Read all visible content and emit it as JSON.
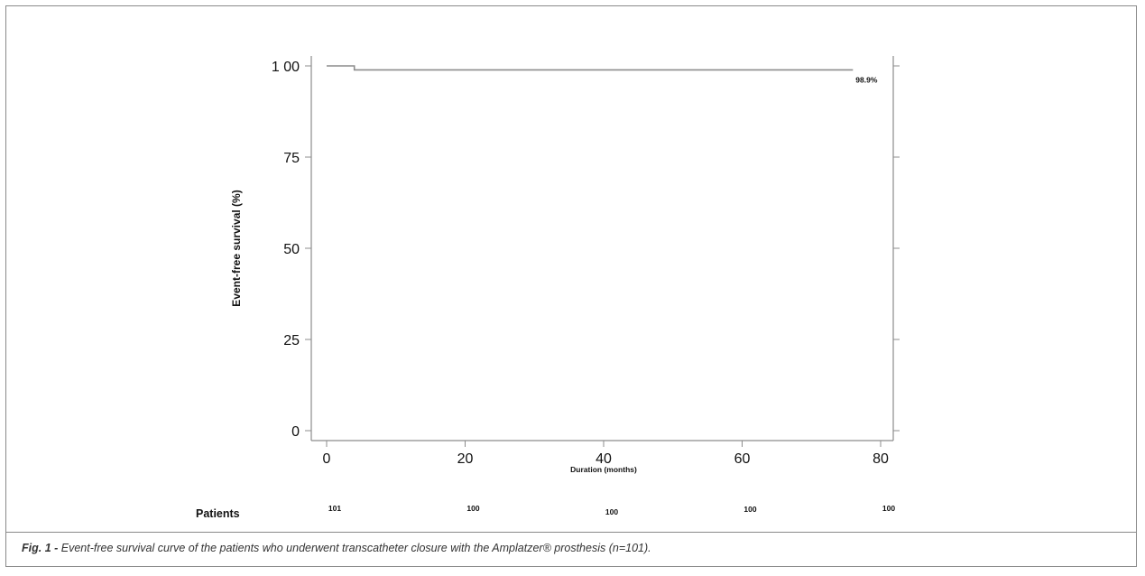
{
  "chart_data": {
    "type": "line",
    "xlabel": "Duration (months)",
    "ylabel": "Event-free survival (%)",
    "xlim": [
      0,
      80
    ],
    "ylim": [
      0,
      100
    ],
    "x_ticks": [
      "0",
      "20",
      "40",
      "60",
      "80"
    ],
    "y_ticks": [
      "0",
      "25",
      "50",
      "75",
      "1 00"
    ],
    "series": [
      {
        "x": [
          0,
          4,
          4,
          76
        ],
        "y": [
          100,
          100,
          98.9,
          98.9
        ],
        "step": true
      }
    ],
    "end_label": "98.9%",
    "risk_table": {
      "label": "Patients",
      "x": [
        0,
        20,
        40,
        60,
        80
      ],
      "values": [
        "101",
        "100",
        "100",
        "100",
        "100"
      ]
    },
    "grid": false,
    "line_color": "#8c8c8c"
  },
  "caption": {
    "fig_label": "Fig. 1 -",
    "text": " Event-free survival curve of the patients who underwent transcatheter closure with the Amplatzer® prosthesis (n=101)."
  }
}
